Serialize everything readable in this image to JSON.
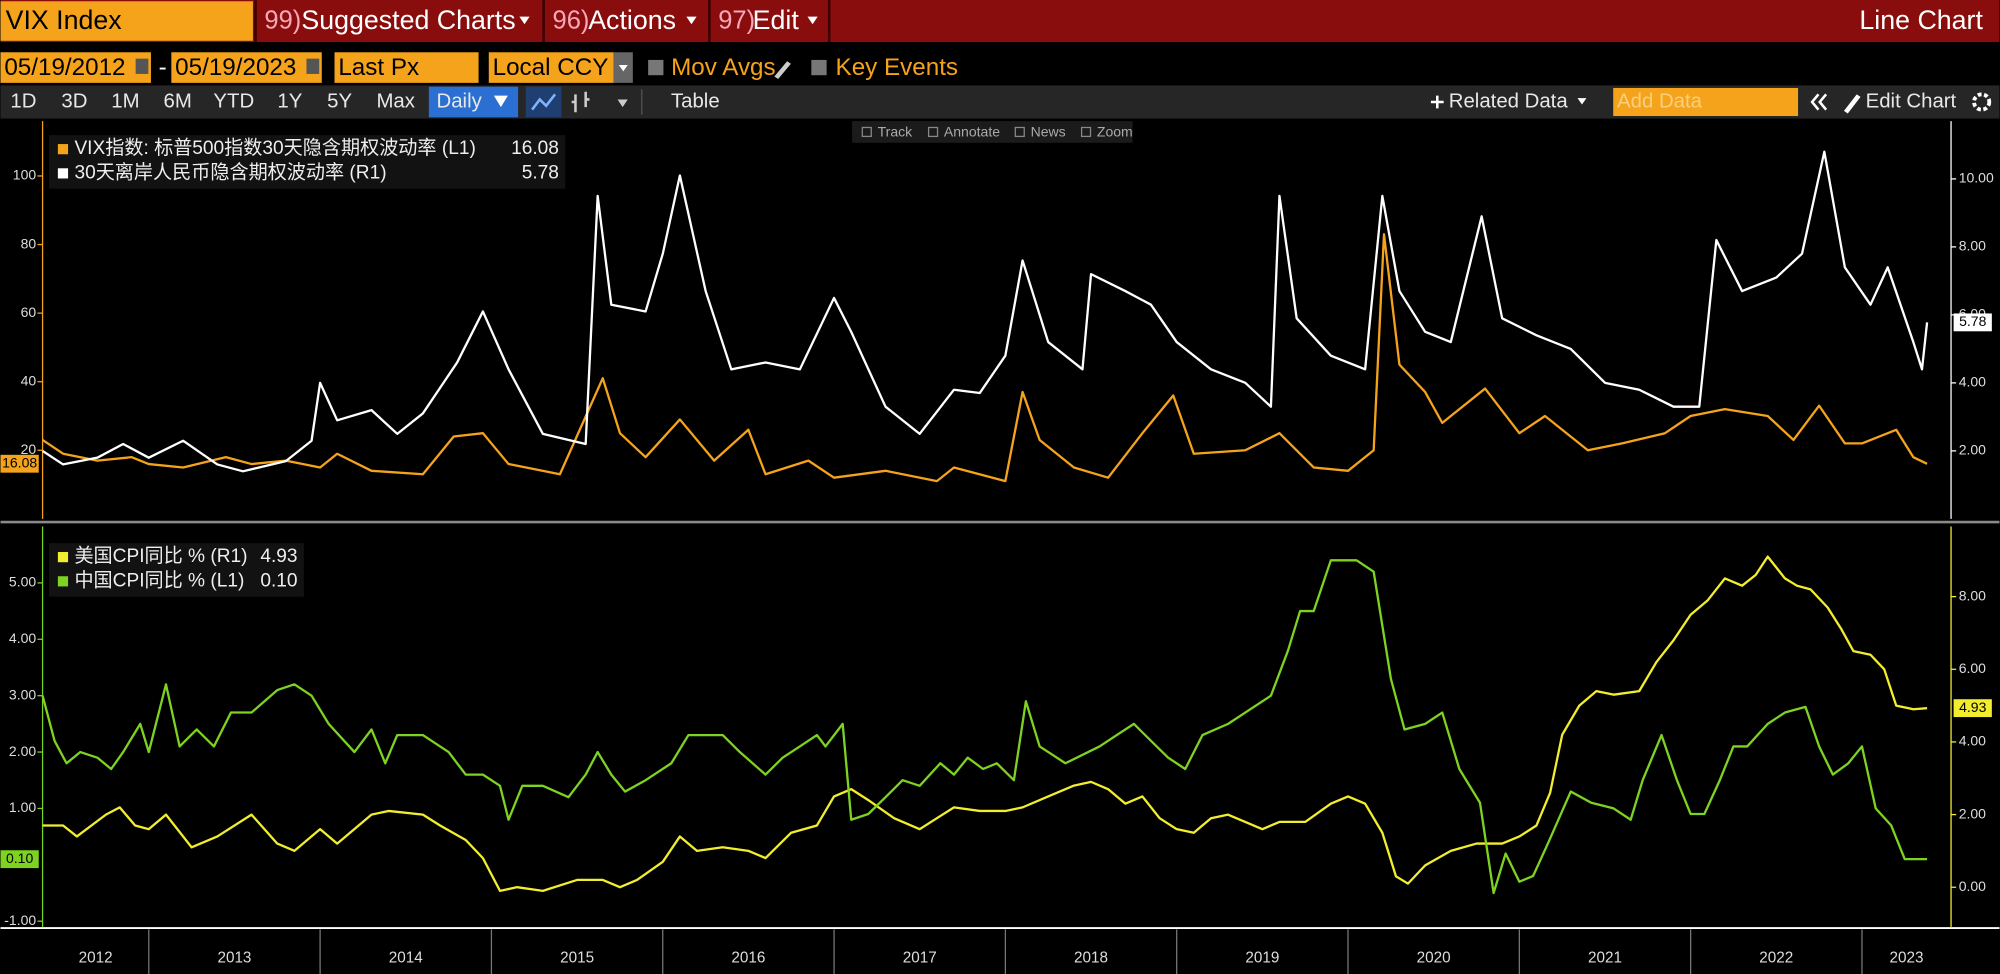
{
  "header": {
    "ticker": "VIX Index",
    "menus": [
      {
        "number": "99)",
        "label": "Suggested Charts"
      },
      {
        "number": "96)",
        "label": "Actions"
      },
      {
        "number": "97)",
        "label": "Edit"
      }
    ],
    "view": "Line Chart"
  },
  "controls": {
    "start_date": "05/19/2012",
    "date_separator": "-",
    "end_date": "05/19/2023",
    "field": "Last Px",
    "currency": "Local CCY",
    "mov_avgs": "Mov Avgs",
    "key_events": "Key Events"
  },
  "toolbar": {
    "periods": [
      "1D",
      "3D",
      "1M",
      "6M",
      "YTD",
      "1Y",
      "5Y",
      "Max"
    ],
    "frequency": "Daily",
    "table": "Table",
    "related_data": "Related Data",
    "add_data": "Add Data",
    "edit_chart": "Edit Chart"
  },
  "chart_tools": [
    "Track",
    "Annotate",
    "News",
    "Zoom"
  ],
  "chart_data": [
    {
      "type": "line",
      "xlim": [
        2012.38,
        2023.52
      ],
      "ylim": [
        0,
        116
      ],
      "yticks": [
        20,
        40,
        60,
        80,
        100
      ],
      "y2lim": [
        0,
        11.7
      ],
      "y2ticks": [
        {
          "value": 2,
          "label": "2.00"
        },
        {
          "value": 4,
          "label": "4.00"
        },
        {
          "value": 6,
          "label": "6.00"
        },
        {
          "value": 8,
          "label": "8.00"
        },
        {
          "value": 10,
          "label": "10.00"
        }
      ],
      "series": [
        {
          "name": "VIX指数: 标普500指数30天隐含期权波动率 (L1)",
          "color": "#f5a31b",
          "last_label": "16.08",
          "x": [
            2012.38,
            2012.5,
            2012.7,
            2012.9,
            2013.0,
            2013.2,
            2013.45,
            2013.6,
            2013.8,
            2014.0,
            2014.1,
            2014.3,
            2014.6,
            2014.78,
            2014.95,
            2015.1,
            2015.4,
            2015.65,
            2015.75,
            2015.9,
            2016.1,
            2016.3,
            2016.5,
            2016.6,
            2016.85,
            2017.0,
            2017.3,
            2017.6,
            2017.7,
            2018.0,
            2018.1,
            2018.2,
            2018.4,
            2018.6,
            2018.8,
            2018.98,
            2019.1,
            2019.4,
            2019.6,
            2019.8,
            2020.0,
            2020.15,
            2020.21,
            2020.3,
            2020.45,
            2020.55,
            2020.8,
            2021.0,
            2021.15,
            2021.4,
            2021.6,
            2021.85,
            2022.0,
            2022.2,
            2022.45,
            2022.6,
            2022.75,
            2022.9,
            2023.0,
            2023.2,
            2023.3,
            2023.38
          ],
          "values": [
            23,
            19,
            17,
            18,
            16,
            15,
            18,
            16,
            17,
            15,
            19,
            14,
            13,
            24,
            25,
            16,
            13,
            41,
            25,
            18,
            29,
            17,
            26,
            13,
            17,
            12,
            14,
            11,
            15,
            11,
            37,
            23,
            15,
            12,
            25,
            36,
            19,
            20,
            25,
            15,
            14,
            20,
            83,
            45,
            37,
            28,
            38,
            25,
            30,
            20,
            22,
            25,
            30,
            32,
            30,
            23,
            33,
            22,
            22,
            26,
            18,
            16.08
          ]
        },
        {
          "name": "30天离岸人民币隐含期权波动率 (R1)",
          "color": "#ffffff",
          "axis": "y2",
          "last_label": "5.78",
          "x": [
            2012.38,
            2012.5,
            2012.7,
            2012.85,
            2013.0,
            2013.2,
            2013.4,
            2013.55,
            2013.8,
            2013.95,
            2014.0,
            2014.1,
            2014.3,
            2014.45,
            2014.6,
            2014.8,
            2014.95,
            2015.1,
            2015.3,
            2015.55,
            2015.62,
            2015.7,
            2015.9,
            2016.0,
            2016.1,
            2016.25,
            2016.4,
            2016.6,
            2016.8,
            2017.0,
            2017.1,
            2017.3,
            2017.5,
            2017.7,
            2017.85,
            2018.0,
            2018.1,
            2018.25,
            2018.45,
            2018.5,
            2018.7,
            2018.85,
            2019.0,
            2019.2,
            2019.4,
            2019.55,
            2019.6,
            2019.7,
            2019.9,
            2020.1,
            2020.2,
            2020.3,
            2020.45,
            2020.6,
            2020.78,
            2020.9,
            2021.1,
            2021.3,
            2021.5,
            2021.7,
            2021.9,
            2022.05,
            2022.15,
            2022.3,
            2022.5,
            2022.65,
            2022.78,
            2022.9,
            2023.05,
            2023.15,
            2023.3,
            2023.35,
            2023.38
          ],
          "values": [
            2.0,
            1.6,
            1.8,
            2.2,
            1.8,
            2.3,
            1.6,
            1.4,
            1.7,
            2.3,
            4.0,
            2.9,
            3.2,
            2.5,
            3.1,
            4.6,
            6.1,
            4.4,
            2.5,
            2.2,
            9.5,
            6.3,
            6.1,
            7.8,
            10.1,
            6.7,
            4.4,
            4.6,
            4.4,
            6.5,
            5.5,
            3.3,
            2.5,
            3.8,
            3.7,
            4.8,
            7.6,
            5.2,
            4.4,
            7.2,
            6.7,
            6.3,
            5.2,
            4.4,
            4.0,
            3.3,
            9.5,
            5.9,
            4.8,
            4.4,
            9.5,
            6.7,
            5.5,
            5.2,
            8.9,
            5.9,
            5.4,
            5.0,
            4.0,
            3.8,
            3.3,
            3.3,
            8.2,
            6.7,
            7.1,
            7.8,
            10.8,
            7.4,
            6.3,
            7.4,
            5.2,
            4.4,
            5.78
          ]
        }
      ]
    },
    {
      "type": "line",
      "xlim": [
        2012.38,
        2023.52
      ],
      "ylim": [
        -1.1,
        6.0
      ],
      "yticks": [
        {
          "value": 5,
          "label": "5.00"
        },
        {
          "value": 4,
          "label": "4.00"
        },
        {
          "value": 3,
          "label": "3.00"
        },
        {
          "value": 2,
          "label": "2.00"
        },
        {
          "value": 1,
          "label": "1.00"
        },
        {
          "value": -1,
          "label": "-1.00"
        }
      ],
      "y2lim": [
        -1.09,
        9.93
      ],
      "y2ticks": [
        {
          "value": 8,
          "label": "8.00"
        },
        {
          "value": 6,
          "label": "6.00"
        },
        {
          "value": 4,
          "label": "4.00"
        },
        {
          "value": 2,
          "label": "2.00"
        },
        {
          "value": 0,
          "label": "0.00"
        }
      ],
      "xticks": [
        2013,
        2014,
        2015,
        2016,
        2017,
        2018,
        2019,
        2020,
        2021,
        2022,
        2023
      ],
      "x_labels": [
        "2012",
        "2013",
        "2014",
        "2015",
        "2016",
        "2017",
        "2018",
        "2019",
        "2020",
        "2021",
        "2022",
        "2023"
      ],
      "series": [
        {
          "name": "美国CPI同比 % (R1)",
          "color": "#f2ee2e",
          "axis": "y2",
          "last_label": "4.93",
          "x": [
            2012.38,
            2012.5,
            2012.58,
            2012.75,
            2012.83,
            2012.92,
            2013.0,
            2013.1,
            2013.25,
            2013.4,
            2013.6,
            2013.75,
            2013.85,
            2014.0,
            2014.1,
            2014.3,
            2014.4,
            2014.6,
            2014.7,
            2014.85,
            2014.95,
            2015.05,
            2015.15,
            2015.3,
            2015.5,
            2015.65,
            2015.75,
            2015.85,
            2016.0,
            2016.1,
            2016.2,
            2016.35,
            2016.5,
            2016.6,
            2016.75,
            2016.9,
            2017.0,
            2017.1,
            2017.2,
            2017.35,
            2017.5,
            2017.6,
            2017.7,
            2017.85,
            2018.0,
            2018.1,
            2018.25,
            2018.4,
            2018.5,
            2018.6,
            2018.7,
            2018.8,
            2018.9,
            2019.0,
            2019.1,
            2019.2,
            2019.3,
            2019.5,
            2019.6,
            2019.75,
            2019.9,
            2020.0,
            2020.1,
            2020.2,
            2020.28,
            2020.35,
            2020.45,
            2020.6,
            2020.75,
            2020.9,
            2021.0,
            2021.1,
            2021.18,
            2021.25,
            2021.35,
            2021.45,
            2021.55,
            2021.7,
            2021.8,
            2021.9,
            2022.0,
            2022.1,
            2022.2,
            2022.3,
            2022.38,
            2022.45,
            2022.55,
            2022.62,
            2022.7,
            2022.8,
            2022.88,
            2022.95,
            2023.05,
            2023.13,
            2023.2,
            2023.3,
            2023.38
          ],
          "values": [
            1.7,
            1.7,
            1.4,
            2.0,
            2.2,
            1.7,
            1.6,
            2.0,
            1.1,
            1.4,
            2.0,
            1.2,
            1.0,
            1.6,
            1.2,
            2.0,
            2.1,
            2.0,
            1.7,
            1.3,
            0.8,
            -0.1,
            0.0,
            -0.1,
            0.2,
            0.2,
            0.0,
            0.2,
            0.7,
            1.4,
            1.0,
            1.1,
            1.0,
            0.8,
            1.5,
            1.7,
            2.5,
            2.7,
            2.4,
            1.9,
            1.6,
            1.9,
            2.2,
            2.1,
            2.1,
            2.2,
            2.5,
            2.8,
            2.9,
            2.7,
            2.3,
            2.5,
            1.9,
            1.6,
            1.5,
            1.9,
            2.0,
            1.6,
            1.8,
            1.8,
            2.3,
            2.5,
            2.3,
            1.5,
            0.3,
            0.1,
            0.6,
            1.0,
            1.2,
            1.2,
            1.4,
            1.7,
            2.6,
            4.2,
            5.0,
            5.4,
            5.3,
            5.4,
            6.2,
            6.8,
            7.5,
            7.9,
            8.5,
            8.3,
            8.6,
            9.1,
            8.5,
            8.3,
            8.2,
            7.7,
            7.1,
            6.5,
            6.4,
            6.0,
            5.0,
            4.9,
            4.93
          ]
        },
        {
          "name": "中国CPI同比 % (L1)",
          "color": "#7ed320",
          "last_label": "0.10",
          "x": [
            2012.38,
            2012.45,
            2012.52,
            2012.6,
            2012.7,
            2012.78,
            2012.85,
            2012.95,
            2013.0,
            2013.1,
            2013.18,
            2013.28,
            2013.38,
            2013.48,
            2013.6,
            2013.75,
            2013.85,
            2013.95,
            2014.05,
            2014.2,
            2014.3,
            2014.38,
            2014.45,
            2014.6,
            2014.75,
            2014.85,
            2014.95,
            2015.05,
            2015.1,
            2015.18,
            2015.3,
            2015.45,
            2015.55,
            2015.62,
            2015.7,
            2015.78,
            2015.9,
            2016.05,
            2016.15,
            2016.35,
            2016.45,
            2016.6,
            2016.7,
            2016.8,
            2016.9,
            2016.95,
            2017.05,
            2017.1,
            2017.2,
            2017.3,
            2017.4,
            2017.5,
            2017.62,
            2017.7,
            2017.78,
            2017.87,
            2017.95,
            2018.05,
            2018.12,
            2018.2,
            2018.35,
            2018.55,
            2018.65,
            2018.75,
            2018.85,
            2018.95,
            2019.05,
            2019.15,
            2019.3,
            2019.45,
            2019.55,
            2019.65,
            2019.72,
            2019.8,
            2019.9,
            2020.05,
            2020.15,
            2020.25,
            2020.33,
            2020.45,
            2020.55,
            2020.65,
            2020.77,
            2020.85,
            2020.92,
            2021.0,
            2021.08,
            2021.17,
            2021.3,
            2021.42,
            2021.55,
            2021.65,
            2021.72,
            2021.83,
            2021.92,
            2022.0,
            2022.08,
            2022.17,
            2022.25,
            2022.33,
            2022.45,
            2022.55,
            2022.67,
            2022.75,
            2022.83,
            2022.92,
            2023.0,
            2023.08,
            2023.17,
            2023.25,
            2023.38
          ],
          "values": [
            3.0,
            2.2,
            1.8,
            2.0,
            1.9,
            1.7,
            2.0,
            2.5,
            2.0,
            3.2,
            2.1,
            2.4,
            2.1,
            2.7,
            2.7,
            3.1,
            3.2,
            3.0,
            2.5,
            2.0,
            2.4,
            1.8,
            2.3,
            2.3,
            2.0,
            1.6,
            1.6,
            1.4,
            0.8,
            1.4,
            1.4,
            1.2,
            1.6,
            2.0,
            1.6,
            1.3,
            1.5,
            1.8,
            2.3,
            2.3,
            2.0,
            1.6,
            1.9,
            2.1,
            2.3,
            2.1,
            2.5,
            0.8,
            0.9,
            1.2,
            1.5,
            1.4,
            1.8,
            1.6,
            1.9,
            1.7,
            1.8,
            1.5,
            2.9,
            2.1,
            1.8,
            2.1,
            2.3,
            2.5,
            2.2,
            1.9,
            1.7,
            2.3,
            2.5,
            2.8,
            3.0,
            3.8,
            4.5,
            4.5,
            5.4,
            5.4,
            5.2,
            3.3,
            2.4,
            2.5,
            2.7,
            1.7,
            1.1,
            -0.5,
            0.2,
            -0.3,
            -0.2,
            0.4,
            1.3,
            1.1,
            1.0,
            0.8,
            1.5,
            2.3,
            1.5,
            0.9,
            0.9,
            1.5,
            2.1,
            2.1,
            2.5,
            2.7,
            2.8,
            2.1,
            1.6,
            1.8,
            2.1,
            1.0,
            0.7,
            0.1,
            0.1
          ]
        }
      ]
    }
  ]
}
